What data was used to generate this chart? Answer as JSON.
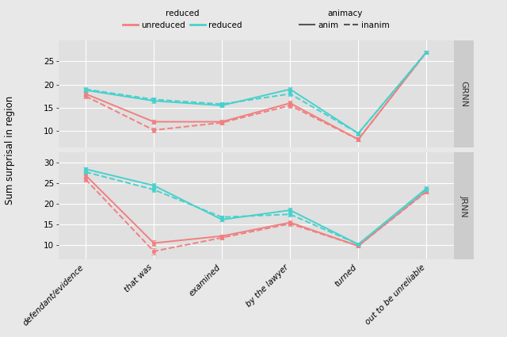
{
  "x_labels": [
    "defendant/evidence",
    "that was",
    "examined",
    "by the lawyer",
    "turned",
    "out to be unreliable"
  ],
  "x_positions": [
    0,
    1,
    2,
    3,
    4,
    5
  ],
  "grnn": {
    "unreduced_anim": [
      18.0,
      12.0,
      12.0,
      16.0,
      8.2,
      27.0
    ],
    "unreduced_inanim": [
      17.5,
      10.2,
      11.8,
      15.5,
      8.2,
      27.0
    ],
    "reduced_anim": [
      18.8,
      16.5,
      15.5,
      19.0,
      9.5,
      27.0
    ],
    "reduced_inanim": [
      19.0,
      16.8,
      15.8,
      18.0,
      9.5,
      27.0
    ],
    "unreduced_anim_err": [
      0.4,
      0.5,
      0.4,
      0.5,
      0.4,
      0.3
    ],
    "unreduced_inanim_err": [
      0.4,
      0.5,
      0.4,
      0.5,
      0.4,
      0.3
    ],
    "reduced_anim_err": [
      0.4,
      0.4,
      0.4,
      0.5,
      0.4,
      0.3
    ],
    "reduced_inanim_err": [
      0.4,
      0.4,
      0.4,
      0.5,
      0.4,
      0.3
    ],
    "ylim": [
      6.5,
      29.5
    ],
    "yticks": [
      10,
      15,
      20,
      25
    ]
  },
  "jrnn": {
    "unreduced_anim": [
      27.0,
      10.5,
      12.2,
      15.5,
      9.8,
      23.2
    ],
    "unreduced_inanim": [
      26.0,
      8.5,
      11.8,
      15.2,
      9.8,
      23.0
    ],
    "reduced_anim": [
      28.5,
      24.5,
      16.2,
      18.5,
      10.2,
      23.8
    ],
    "reduced_inanim": [
      27.8,
      23.5,
      16.8,
      17.5,
      10.2,
      23.5
    ],
    "unreduced_anim_err": [
      0.5,
      0.6,
      0.4,
      0.5,
      0.3,
      0.5
    ],
    "unreduced_inanim_err": [
      0.5,
      0.7,
      0.4,
      0.5,
      0.3,
      0.5
    ],
    "reduced_anim_err": [
      0.5,
      0.5,
      0.4,
      0.5,
      0.3,
      0.5
    ],
    "reduced_inanim_err": [
      0.5,
      0.5,
      0.4,
      0.5,
      0.3,
      0.5
    ],
    "ylim": [
      6.5,
      32.5
    ],
    "yticks": [
      10,
      15,
      20,
      25,
      30
    ]
  },
  "color_unreduced": "#F08080",
  "color_reduced": "#48D1CC",
  "background_color": "#E8E8E8",
  "panel_bg": "#E0E0E0",
  "strip_bg": "#CCCCCC",
  "ylabel": "Sum surprisal in region"
}
